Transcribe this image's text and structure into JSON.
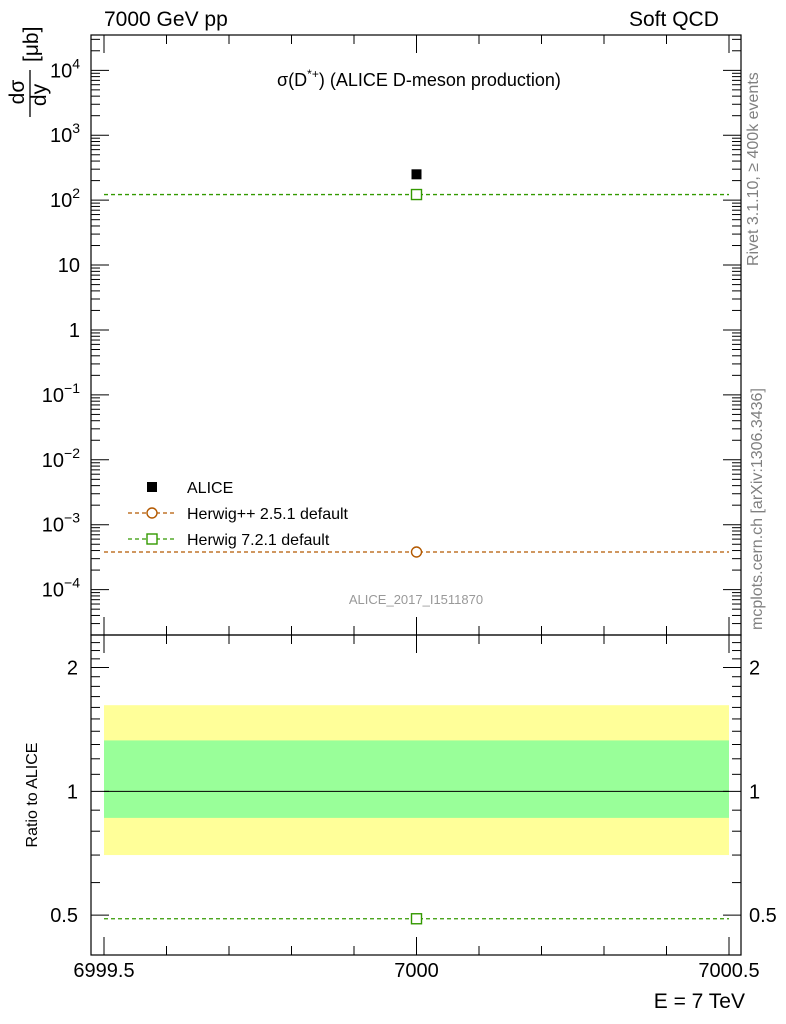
{
  "header": {
    "left": "7000 GeV pp",
    "right": "Soft QCD"
  },
  "side_labels": {
    "top": "Rivet 3.1.10, ≥ 400k events",
    "bottom": "mcplots.cern.ch [arXiv:1306.3436]"
  },
  "colors": {
    "data": "#000000",
    "herwig_pp": "#b35900",
    "herwig7": "#339900",
    "band_outer": "#ffff99",
    "band_inner": "#99ff99",
    "watermark": "#999999"
  },
  "chart_data": [
    {
      "type": "scatter",
      "title": "σ(D*+) (ALICE D-meson production)",
      "title_parts": {
        "sym": "σ(D",
        "sup": "*+",
        "rest": ") (ALICE D-meson production)"
      },
      "ylabel": "dσ/dy [μb]",
      "ylabel_parts": {
        "num": "dσ",
        "den": "dy",
        "unit": "[μb]"
      },
      "yscale": "log",
      "ylim": [
        2e-05,
        35000
      ],
      "xlim": [
        6999.5,
        7000.5
      ],
      "yticks": [
        {
          "v": 0.0001,
          "base": "10",
          "exp": "−4"
        },
        {
          "v": 0.001,
          "base": "10",
          "exp": "−3"
        },
        {
          "v": 0.01,
          "base": "10",
          "exp": "−2"
        },
        {
          "v": 0.1,
          "base": "10",
          "exp": "−1"
        },
        {
          "v": 1,
          "base": "1",
          "exp": ""
        },
        {
          "v": 10,
          "base": "10",
          "exp": ""
        },
        {
          "v": 100,
          "base": "10",
          "exp": "2"
        },
        {
          "v": 1000,
          "base": "10",
          "exp": "3"
        },
        {
          "v": 10000,
          "base": "10",
          "exp": "4"
        }
      ],
      "series": [
        {
          "name": "ALICE",
          "x": [
            7000
          ],
          "y": [
            250
          ],
          "style": "data",
          "color": "#000000"
        },
        {
          "name": "Herwig++ 2.5.1 default",
          "x": [
            7000
          ],
          "y": [
            0.00038
          ],
          "range": [
            6999.5,
            7000.5
          ],
          "style": "circle",
          "color": "#b35900"
        },
        {
          "name": "Herwig 7.2.1 default",
          "x": [
            7000
          ],
          "y": [
            122
          ],
          "range": [
            6999.5,
            7000.5
          ],
          "style": "square",
          "color": "#339900"
        }
      ],
      "legend_position": "bottom-left",
      "watermark": "ALICE_2017_I1511870"
    },
    {
      "type": "scatter",
      "ylabel": "Ratio to ALICE",
      "xlabel": "E = 7 TeV",
      "yscale": "log",
      "ylim": [
        0.4,
        2.4
      ],
      "xlim": [
        6999.5,
        7000.5
      ],
      "yticks": [
        {
          "v": 0.5,
          "label": "0.5"
        },
        {
          "v": 1,
          "label": "1"
        },
        {
          "v": 2,
          "label": "2"
        }
      ],
      "xticks": [
        {
          "v": 6999.5,
          "label": "6999.5"
        },
        {
          "v": 7000,
          "label": "7000"
        },
        {
          "v": 7000.5,
          "label": "7000.5"
        }
      ],
      "bands": [
        {
          "name": "outer",
          "lo": 0.7,
          "hi": 1.62,
          "color": "#ffff99"
        },
        {
          "name": "inner",
          "lo": 0.862,
          "hi": 1.33,
          "color": "#99ff99"
        }
      ],
      "reference": 1,
      "series": [
        {
          "name": "Herwig 7.2.1 default",
          "x": [
            7000
          ],
          "y": [
            0.49
          ],
          "range": [
            6999.5,
            7000.5
          ],
          "style": "square",
          "color": "#339900"
        }
      ]
    }
  ]
}
